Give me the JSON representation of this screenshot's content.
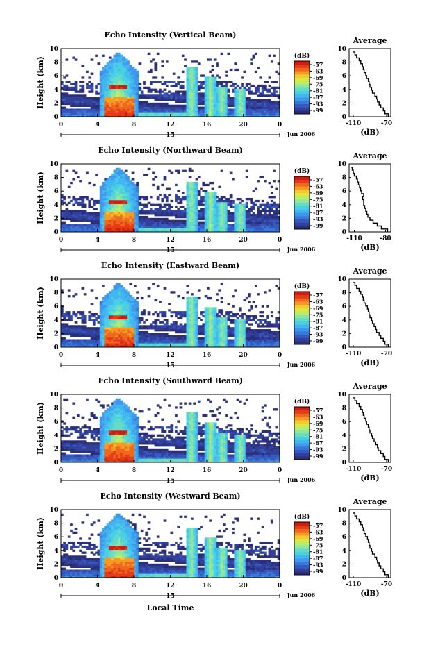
{
  "figure": {
    "xlabel": "Local Time",
    "date_label": "Jun 2006",
    "day_label": "15"
  },
  "colors": {
    "colormap": [
      "#2a2f78",
      "#33409a",
      "#3559c0",
      "#3a78d8",
      "#3f98ec",
      "#42b6f0",
      "#4ad0e4",
      "#67dcc4",
      "#8ee6a0",
      "#b8ec6c",
      "#e0e640",
      "#f6c830",
      "#f69a26",
      "#f0681e",
      "#e43c18",
      "#cc1e14"
    ]
  },
  "chart_data": [
    {
      "type": "heatmap",
      "title": "Echo Intensity (Vertical Beam)",
      "ylabel": "Height (km)",
      "xlim": [
        0,
        24
      ],
      "ylim": [
        0,
        10
      ],
      "xticks": [
        "0",
        "4",
        "8",
        "12",
        "16",
        "20",
        "0"
      ],
      "yticks": [
        "0",
        "2",
        "4",
        "6",
        "8",
        "10"
      ],
      "colorbar": {
        "label": "(dB)",
        "ticks": [
          "-57",
          "-63",
          "-69",
          "-75",
          "-81",
          "-87",
          "-93",
          "-99"
        ]
      },
      "profile": {
        "title": "Average",
        "xlabel": "(dB)",
        "xticks": [
          "-110",
          "-70"
        ],
        "xlim": [
          -115,
          -65
        ],
        "values_db": [
          -68,
          -72,
          -74,
          -77,
          -79,
          -81,
          -82,
          -84,
          -87,
          -88,
          -90,
          -91,
          -92,
          -94,
          -95,
          -97,
          -98,
          -99,
          -101,
          -103,
          -106,
          -108,
          -110
        ]
      }
    },
    {
      "type": "heatmap",
      "title": "Echo Intensity (Northward Beam)",
      "ylabel": "Height (km)",
      "xlim": [
        0,
        24
      ],
      "ylim": [
        0,
        10
      ],
      "xticks": [
        "0",
        "4",
        "8",
        "12",
        "16",
        "20",
        "0"
      ],
      "yticks": [
        "0",
        "2",
        "4",
        "6",
        "8",
        "10"
      ],
      "colorbar": {
        "label": "(dB)",
        "ticks": [
          "-57",
          "-63",
          "-69",
          "-75",
          "-81",
          "-87",
          "-93",
          "-99"
        ]
      },
      "profile": {
        "title": "Average",
        "xlabel": "(dB)",
        "xticks": [
          "-110",
          "-80"
        ],
        "xlim": [
          -115,
          -75
        ],
        "values_db": [
          -78,
          -84,
          -88,
          -92,
          -95,
          -97,
          -98,
          -99,
          -100,
          -101,
          -101,
          -102,
          -101,
          -103,
          -104,
          -105,
          -106,
          -107,
          -108,
          -110,
          -111,
          -112,
          -113
        ]
      }
    },
    {
      "type": "heatmap",
      "title": "Echo Intensity (Eastward Beam)",
      "ylabel": "Height (km)",
      "xlim": [
        0,
        24
      ],
      "ylim": [
        0,
        10
      ],
      "xticks": [
        "0",
        "4",
        "8",
        "12",
        "16",
        "20",
        "0"
      ],
      "yticks": [
        "0",
        "2",
        "4",
        "6",
        "8",
        "10"
      ],
      "colorbar": {
        "label": "(dB)",
        "ticks": [
          "-57",
          "-63",
          "-69",
          "-75",
          "-81",
          "-87",
          "-93",
          "-99"
        ]
      },
      "profile": {
        "title": "Average",
        "xlabel": "(dB)",
        "xticks": [
          "-110",
          "-70"
        ],
        "xlim": [
          -115,
          -65
        ],
        "values_db": [
          -68,
          -72,
          -74,
          -77,
          -79,
          -82,
          -83,
          -85,
          -87,
          -88,
          -90,
          -91,
          -92,
          -93,
          -95,
          -97,
          -98,
          -99,
          -101,
          -103,
          -106,
          -108,
          -110
        ]
      }
    },
    {
      "type": "heatmap",
      "title": "Echo Intensity (Southward Beam)",
      "ylabel": "Height (km)",
      "xlim": [
        0,
        24
      ],
      "ylim": [
        0,
        10
      ],
      "xticks": [
        "0",
        "4",
        "8",
        "12",
        "16",
        "20",
        "0"
      ],
      "yticks": [
        "0",
        "2",
        "4",
        "6",
        "8",
        "10"
      ],
      "colorbar": {
        "label": "(dB)",
        "ticks": [
          "-57",
          "-63",
          "-69",
          "-75",
          "-81",
          "-87",
          "-93",
          "-99"
        ]
      },
      "profile": {
        "title": "Average",
        "xlabel": "(dB)",
        "xticks": [
          "-110",
          "-70"
        ],
        "xlim": [
          -115,
          -65
        ],
        "values_db": [
          -68,
          -72,
          -74,
          -77,
          -80,
          -81,
          -83,
          -85,
          -87,
          -88,
          -90,
          -91,
          -92,
          -94,
          -95,
          -97,
          -98,
          -99,
          -101,
          -103,
          -106,
          -108,
          -110
        ]
      }
    },
    {
      "type": "heatmap",
      "title": "Echo Intensity (Westward Beam)",
      "ylabel": "Height (km)",
      "xlim": [
        0,
        24
      ],
      "ylim": [
        0,
        10
      ],
      "xticks": [
        "0",
        "4",
        "8",
        "12",
        "16",
        "20",
        "0"
      ],
      "yticks": [
        "0",
        "2",
        "4",
        "6",
        "8",
        "10"
      ],
      "colorbar": {
        "label": "(dB)",
        "ticks": [
          "-57",
          "-63",
          "-69",
          "-75",
          "-81",
          "-87",
          "-93",
          "-99"
        ]
      },
      "profile": {
        "title": "Average",
        "xlabel": "(dB)",
        "xticks": [
          "-110",
          "-70"
        ],
        "xlim": [
          -115,
          -65
        ],
        "values_db": [
          -68,
          -72,
          -74,
          -77,
          -79,
          -81,
          -82,
          -84,
          -87,
          -88,
          -90,
          -91,
          -92,
          -93,
          -95,
          -97,
          -98,
          -99,
          -101,
          -103,
          -106,
          -108,
          -110
        ]
      }
    }
  ]
}
